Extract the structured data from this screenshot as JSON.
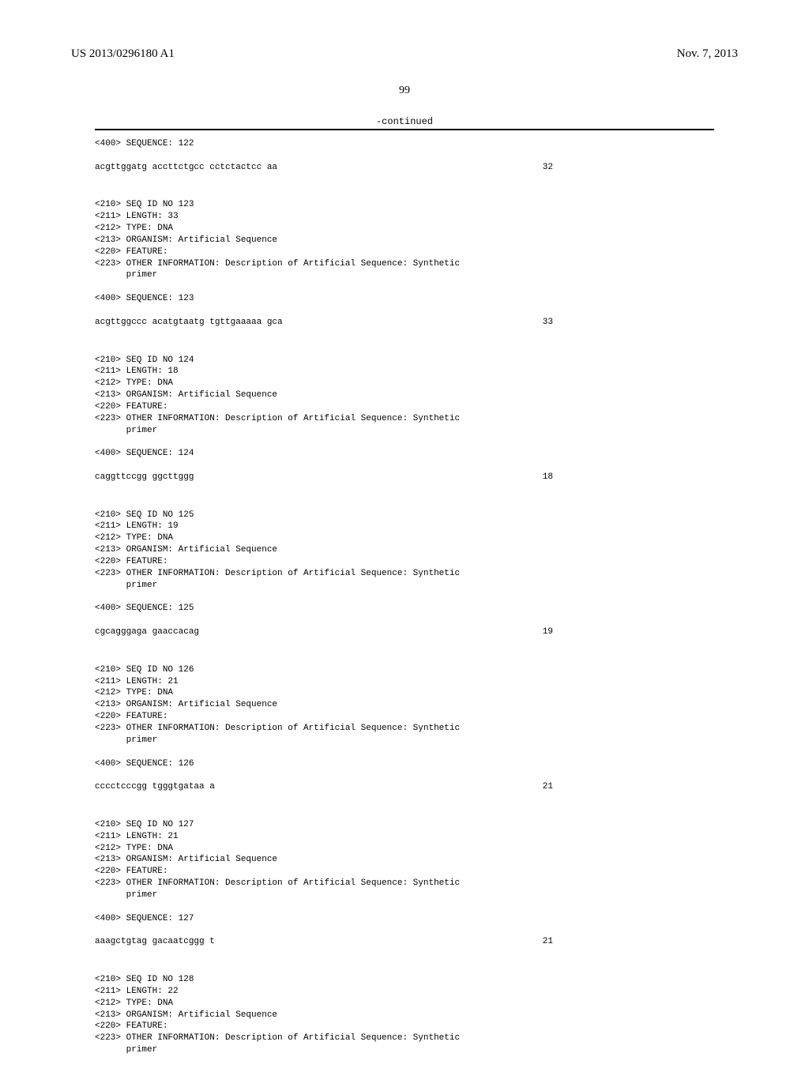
{
  "header": {
    "pub_no": "US 2013/0296180 A1",
    "pub_date": "Nov. 7, 2013"
  },
  "page_number": "99",
  "continued_label": "-continued",
  "sequences": [
    {
      "pre": [
        "<400> SEQUENCE: 122"
      ],
      "seq_text": "acgttggatg accttctgcc cctctactcc aa",
      "seq_pos": "32"
    },
    {
      "pre": [
        "<210> SEQ ID NO 123",
        "<211> LENGTH: 33",
        "<212> TYPE: DNA",
        "<213> ORGANISM: Artificial Sequence",
        "<220> FEATURE:",
        "<223> OTHER INFORMATION: Description of Artificial Sequence: Synthetic",
        "      primer",
        "",
        "<400> SEQUENCE: 123"
      ],
      "seq_text": "acgttggccc acatgtaatg tgttgaaaaa gca",
      "seq_pos": "33"
    },
    {
      "pre": [
        "<210> SEQ ID NO 124",
        "<211> LENGTH: 18",
        "<212> TYPE: DNA",
        "<213> ORGANISM: Artificial Sequence",
        "<220> FEATURE:",
        "<223> OTHER INFORMATION: Description of Artificial Sequence: Synthetic",
        "      primer",
        "",
        "<400> SEQUENCE: 124"
      ],
      "seq_text": "caggttccgg ggcttggg",
      "seq_pos": "18"
    },
    {
      "pre": [
        "<210> SEQ ID NO 125",
        "<211> LENGTH: 19",
        "<212> TYPE: DNA",
        "<213> ORGANISM: Artificial Sequence",
        "<220> FEATURE:",
        "<223> OTHER INFORMATION: Description of Artificial Sequence: Synthetic",
        "      primer",
        "",
        "<400> SEQUENCE: 125"
      ],
      "seq_text": "cgcagggaga gaaccacag",
      "seq_pos": "19"
    },
    {
      "pre": [
        "<210> SEQ ID NO 126",
        "<211> LENGTH: 21",
        "<212> TYPE: DNA",
        "<213> ORGANISM: Artificial Sequence",
        "<220> FEATURE:",
        "<223> OTHER INFORMATION: Description of Artificial Sequence: Synthetic",
        "      primer",
        "",
        "<400> SEQUENCE: 126"
      ],
      "seq_text": "cccctcccgg tgggtgataa a",
      "seq_pos": "21"
    },
    {
      "pre": [
        "<210> SEQ ID NO 127",
        "<211> LENGTH: 21",
        "<212> TYPE: DNA",
        "<213> ORGANISM: Artificial Sequence",
        "<220> FEATURE:",
        "<223> OTHER INFORMATION: Description of Artificial Sequence: Synthetic",
        "      primer",
        "",
        "<400> SEQUENCE: 127"
      ],
      "seq_text": "aaagctgtag gacaatcggg t",
      "seq_pos": "21"
    },
    {
      "pre": [
        "<210> SEQ ID NO 128",
        "<211> LENGTH: 22",
        "<212> TYPE: DNA",
        "<213> ORGANISM: Artificial Sequence",
        "<220> FEATURE:",
        "<223> OTHER INFORMATION: Description of Artificial Sequence: Synthetic",
        "      primer"
      ],
      "seq_text": "",
      "seq_pos": ""
    }
  ]
}
